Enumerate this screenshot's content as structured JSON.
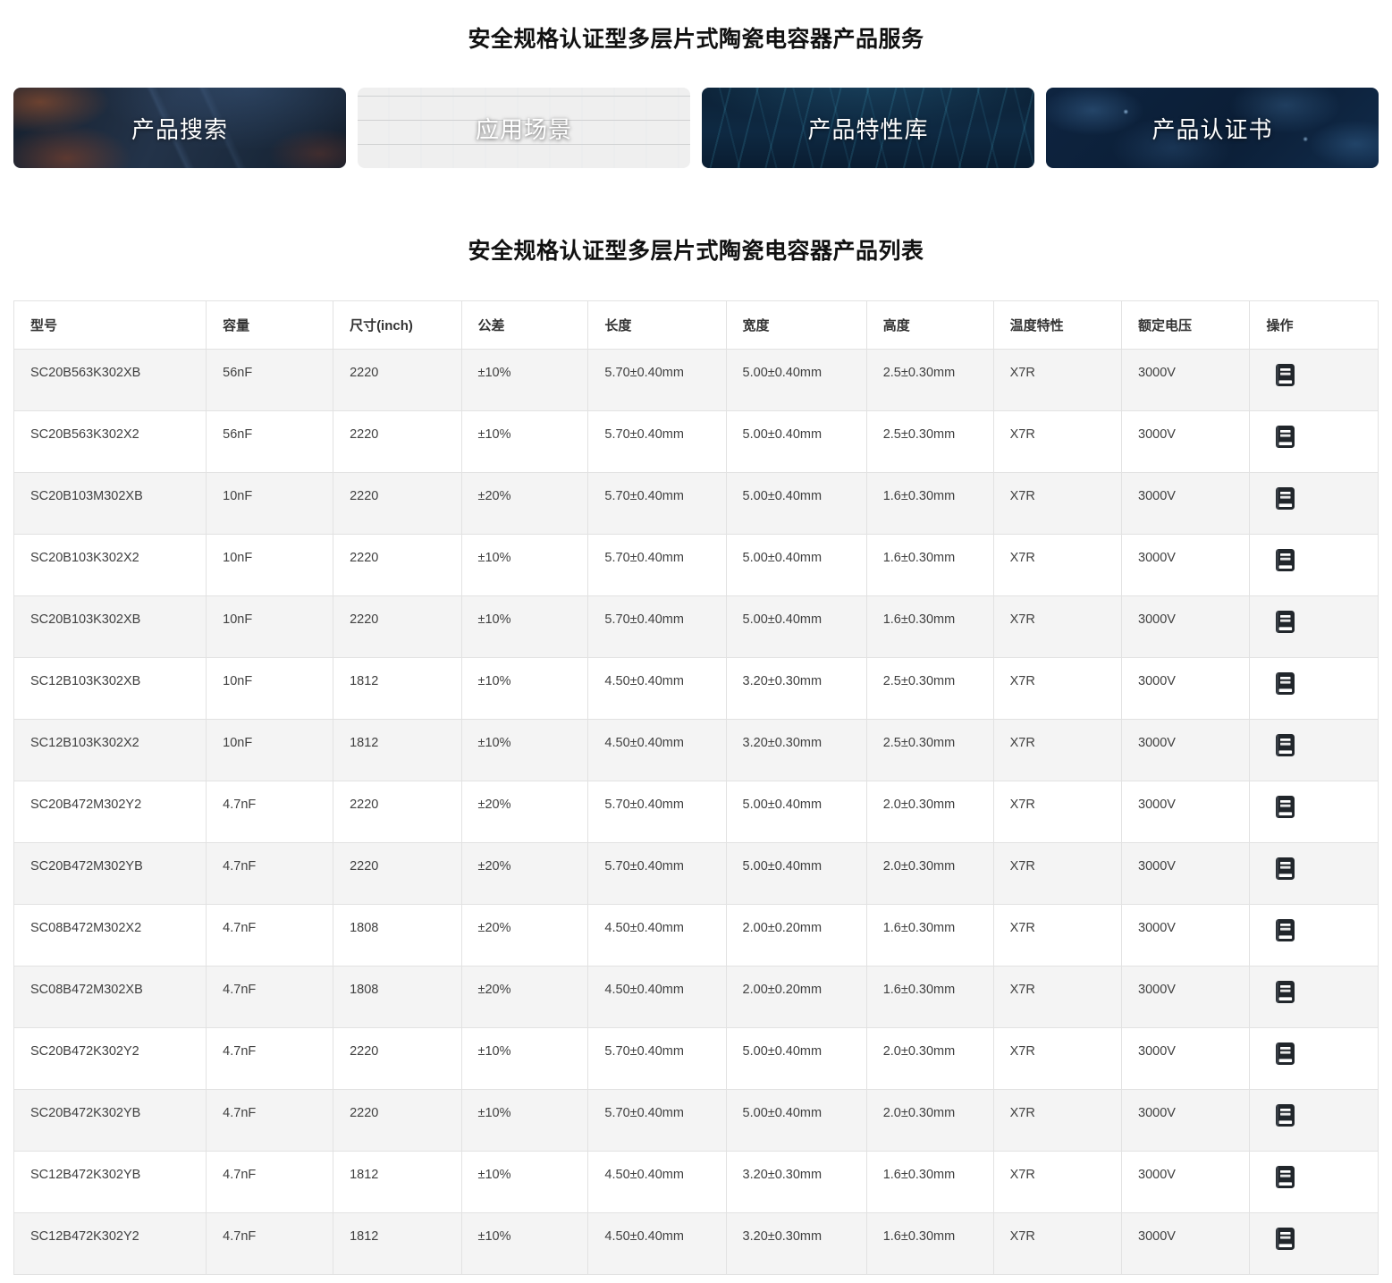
{
  "page": {
    "service_title": "安全规格认证型多层片式陶瓷电容器产品服务",
    "list_title": "安全规格认证型多层片式陶瓷电容器产品列表"
  },
  "nav_cards": [
    {
      "id": "product-search",
      "label": "产品搜索"
    },
    {
      "id": "application-scenes",
      "label": "应用场景"
    },
    {
      "id": "product-characteristic-library",
      "label": "产品特性库"
    },
    {
      "id": "product-certificates",
      "label": "产品认证书"
    }
  ],
  "table": {
    "columns": [
      "型号",
      "容量",
      "尺寸(inch)",
      "公差",
      "长度",
      "宽度",
      "高度",
      "温度特性",
      "额定电压",
      "操作"
    ],
    "action_icon": "document-icon",
    "rows": [
      {
        "model": "SC20B563K302XB",
        "capacity": "56nF",
        "size_inch": "2220",
        "tolerance": "±10%",
        "length": "5.70±0.40mm",
        "width": "5.00±0.40mm",
        "height": "2.5±0.30mm",
        "temp_char": "X7R",
        "rated_voltage": "3000V"
      },
      {
        "model": "SC20B563K302X2",
        "capacity": "56nF",
        "size_inch": "2220",
        "tolerance": "±10%",
        "length": "5.70±0.40mm",
        "width": "5.00±0.40mm",
        "height": "2.5±0.30mm",
        "temp_char": "X7R",
        "rated_voltage": "3000V"
      },
      {
        "model": "SC20B103M302XB",
        "capacity": "10nF",
        "size_inch": "2220",
        "tolerance": "±20%",
        "length": "5.70±0.40mm",
        "width": "5.00±0.40mm",
        "height": "1.6±0.30mm",
        "temp_char": "X7R",
        "rated_voltage": "3000V"
      },
      {
        "model": "SC20B103K302X2",
        "capacity": "10nF",
        "size_inch": "2220",
        "tolerance": "±10%",
        "length": "5.70±0.40mm",
        "width": "5.00±0.40mm",
        "height": "1.6±0.30mm",
        "temp_char": "X7R",
        "rated_voltage": "3000V"
      },
      {
        "model": "SC20B103K302XB",
        "capacity": "10nF",
        "size_inch": "2220",
        "tolerance": "±10%",
        "length": "5.70±0.40mm",
        "width": "5.00±0.40mm",
        "height": "1.6±0.30mm",
        "temp_char": "X7R",
        "rated_voltage": "3000V"
      },
      {
        "model": "SC12B103K302XB",
        "capacity": "10nF",
        "size_inch": "1812",
        "tolerance": "±10%",
        "length": "4.50±0.40mm",
        "width": "3.20±0.30mm",
        "height": "2.5±0.30mm",
        "temp_char": "X7R",
        "rated_voltage": "3000V"
      },
      {
        "model": "SC12B103K302X2",
        "capacity": "10nF",
        "size_inch": "1812",
        "tolerance": "±10%",
        "length": "4.50±0.40mm",
        "width": "3.20±0.30mm",
        "height": "2.5±0.30mm",
        "temp_char": "X7R",
        "rated_voltage": "3000V"
      },
      {
        "model": "SC20B472M302Y2",
        "capacity": "4.7nF",
        "size_inch": "2220",
        "tolerance": "±20%",
        "length": "5.70±0.40mm",
        "width": "5.00±0.40mm",
        "height": "2.0±0.30mm",
        "temp_char": "X7R",
        "rated_voltage": "3000V"
      },
      {
        "model": "SC20B472M302YB",
        "capacity": "4.7nF",
        "size_inch": "2220",
        "tolerance": "±20%",
        "length": "5.70±0.40mm",
        "width": "5.00±0.40mm",
        "height": "2.0±0.30mm",
        "temp_char": "X7R",
        "rated_voltage": "3000V"
      },
      {
        "model": "SC08B472M302X2",
        "capacity": "4.7nF",
        "size_inch": "1808",
        "tolerance": "±20%",
        "length": "4.50±0.40mm",
        "width": "2.00±0.20mm",
        "height": "1.6±0.30mm",
        "temp_char": "X7R",
        "rated_voltage": "3000V"
      },
      {
        "model": "SC08B472M302XB",
        "capacity": "4.7nF",
        "size_inch": "1808",
        "tolerance": "±20%",
        "length": "4.50±0.40mm",
        "width": "2.00±0.20mm",
        "height": "1.6±0.30mm",
        "temp_char": "X7R",
        "rated_voltage": "3000V"
      },
      {
        "model": "SC20B472K302Y2",
        "capacity": "4.7nF",
        "size_inch": "2220",
        "tolerance": "±10%",
        "length": "5.70±0.40mm",
        "width": "5.00±0.40mm",
        "height": "2.0±0.30mm",
        "temp_char": "X7R",
        "rated_voltage": "3000V"
      },
      {
        "model": "SC20B472K302YB",
        "capacity": "4.7nF",
        "size_inch": "2220",
        "tolerance": "±10%",
        "length": "5.70±0.40mm",
        "width": "5.00±0.40mm",
        "height": "2.0±0.30mm",
        "temp_char": "X7R",
        "rated_voltage": "3000V"
      },
      {
        "model": "SC12B472K302YB",
        "capacity": "4.7nF",
        "size_inch": "1812",
        "tolerance": "±10%",
        "length": "4.50±0.40mm",
        "width": "3.20±0.30mm",
        "height": "1.6±0.30mm",
        "temp_char": "X7R",
        "rated_voltage": "3000V"
      },
      {
        "model": "SC12B472K302Y2",
        "capacity": "4.7nF",
        "size_inch": "1812",
        "tolerance": "±10%",
        "length": "4.50±0.40mm",
        "width": "3.20±0.30mm",
        "height": "1.6±0.30mm",
        "temp_char": "X7R",
        "rated_voltage": "3000V"
      }
    ]
  },
  "colors": {
    "stripe_row": "#f4f4f4",
    "table_border": "#e2e2e2",
    "cell_text": "#404040",
    "title_text": "#111111",
    "card_label": "#ffffff",
    "action_icon_fill": "#21262b"
  }
}
